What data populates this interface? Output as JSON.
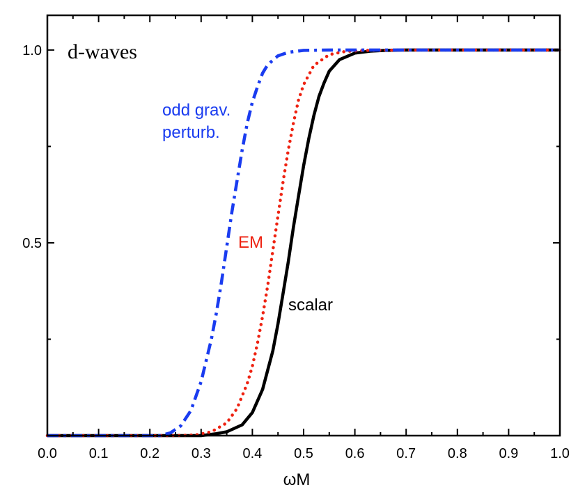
{
  "chart_data": {
    "type": "line",
    "title": "d-waves",
    "xlabel": "ωM",
    "ylabel": "",
    "xlim": [
      0.0,
      1.0
    ],
    "ylim": [
      0.0,
      1.09
    ],
    "xticks": [
      "0.0",
      "0.1",
      "0.2",
      "0.3",
      "0.4",
      "0.5",
      "0.6",
      "0.7",
      "0.8",
      "0.9",
      "1.0"
    ],
    "yticks": [
      "0.5",
      "1.0"
    ],
    "grid": false,
    "series": [
      {
        "name": "scalar",
        "label_lines": [
          "scalar"
        ],
        "color": "#000000",
        "style": "solid",
        "x": [
          0.0,
          0.25,
          0.3,
          0.33,
          0.35,
          0.38,
          0.4,
          0.42,
          0.44,
          0.45,
          0.46,
          0.47,
          0.48,
          0.49,
          0.5,
          0.51,
          0.52,
          0.53,
          0.54,
          0.55,
          0.57,
          0.6,
          0.63,
          0.66,
          0.7,
          0.75,
          1.0
        ],
        "y": [
          0.0,
          0.0,
          0.0,
          0.005,
          0.01,
          0.028,
          0.06,
          0.12,
          0.22,
          0.29,
          0.37,
          0.45,
          0.54,
          0.62,
          0.7,
          0.77,
          0.83,
          0.88,
          0.915,
          0.945,
          0.975,
          0.992,
          0.997,
          0.999,
          1.0,
          1.0,
          1.0
        ]
      },
      {
        "name": "EM",
        "label_lines": [
          "EM"
        ],
        "color": "#ee2211",
        "style": "dotted",
        "x": [
          0.0,
          0.25,
          0.29,
          0.32,
          0.35,
          0.37,
          0.39,
          0.4,
          0.41,
          0.42,
          0.43,
          0.44,
          0.45,
          0.46,
          0.47,
          0.48,
          0.49,
          0.5,
          0.52,
          0.55,
          0.58,
          0.62,
          0.7,
          1.0
        ],
        "y": [
          0.0,
          0.0,
          0.002,
          0.01,
          0.033,
          0.07,
          0.135,
          0.18,
          0.24,
          0.31,
          0.39,
          0.48,
          0.57,
          0.66,
          0.74,
          0.81,
          0.87,
          0.91,
          0.96,
          0.988,
          0.996,
          0.999,
          1.0,
          1.0
        ]
      },
      {
        "name": "odd grav. perturb.",
        "label_lines": [
          "odd grav.",
          "perturb."
        ],
        "color": "#1a3cf0",
        "style": "dashdot",
        "x": [
          0.0,
          0.22,
          0.24,
          0.26,
          0.28,
          0.3,
          0.32,
          0.33,
          0.34,
          0.35,
          0.36,
          0.37,
          0.38,
          0.39,
          0.4,
          0.41,
          0.42,
          0.43,
          0.45,
          0.47,
          0.5,
          0.55,
          0.6,
          1.0
        ],
        "y": [
          0.0,
          0.0,
          0.007,
          0.025,
          0.065,
          0.14,
          0.25,
          0.32,
          0.4,
          0.49,
          0.58,
          0.66,
          0.74,
          0.81,
          0.865,
          0.905,
          0.94,
          0.962,
          0.985,
          0.994,
          0.999,
          1.0,
          1.0,
          1.0
        ]
      }
    ]
  }
}
